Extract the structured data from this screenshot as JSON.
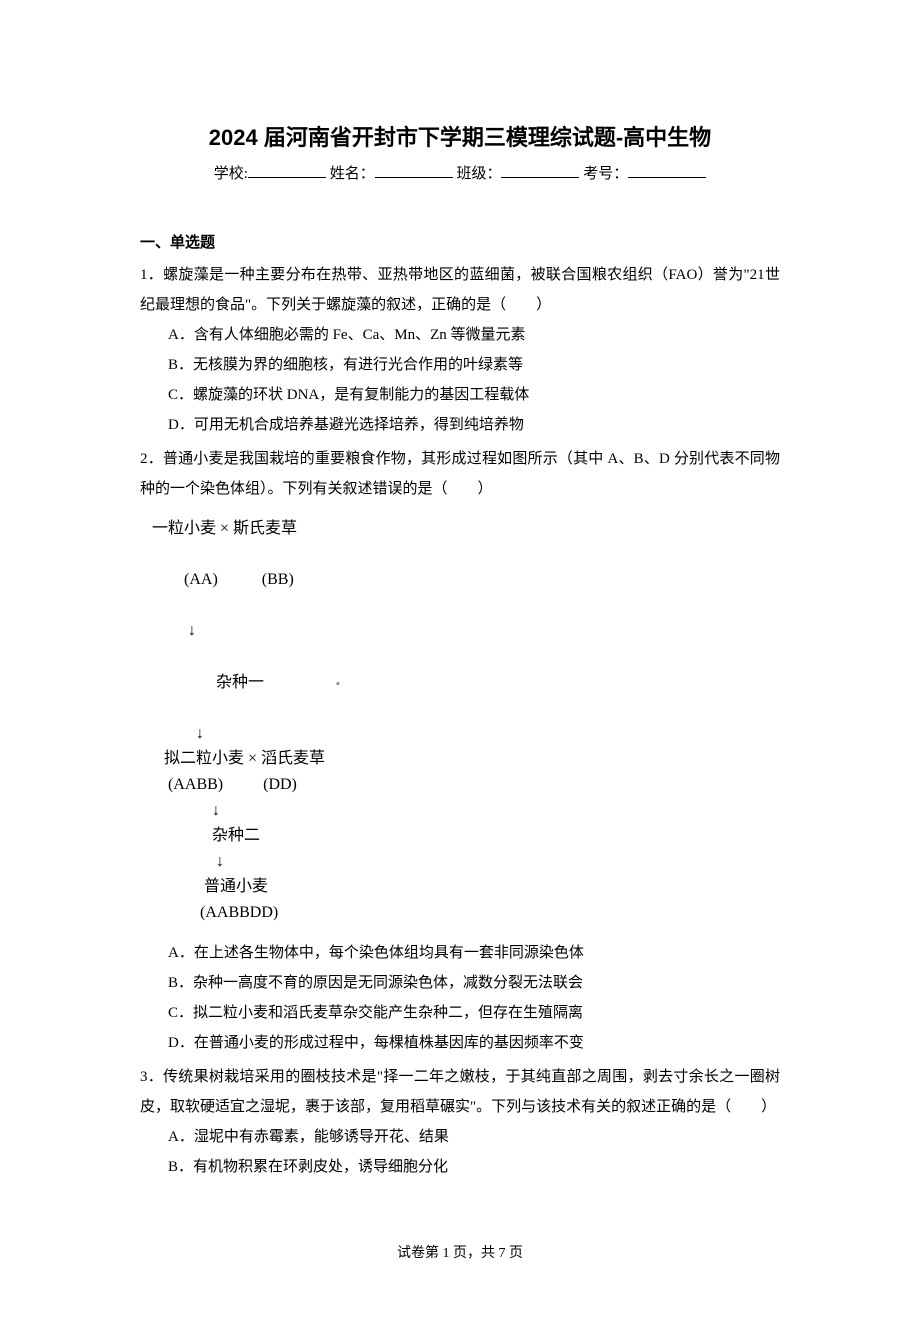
{
  "title": "2024 届河南省开封市下学期三模理综试题-高中生物",
  "meta": {
    "school_label": "学校:",
    "name_label": "姓名：",
    "class_label": "班级：",
    "examno_label": "考号："
  },
  "section1": {
    "heading": "一、单选题"
  },
  "q1": {
    "stem": "1．螺旋藻是一种主要分布在热带、亚热带地区的蓝细菌，被联合国粮农组织（FAO）誉为\"21世纪最理想的食品\"。下列关于螺旋藻的叙述，正确的是（　　）",
    "A": "A．含有人体细胞必需的 Fe、Ca、Mn、Zn 等微量元素",
    "B": "B．无核膜为界的细胞核，有进行光合作用的叶绿素等",
    "C": "C．螺旋藻的环状 DNA，是有复制能力的基因工程载体",
    "D": "D．可用无机合成培养基避光选择培养，得到纯培养物"
  },
  "q2": {
    "stem": "2．普通小麦是我国栽培的重要粮食作物，其形成过程如图所示（其中 A、B、D 分别代表不同物种的一个染色体组）。下列有关叙述错误的是（　　）",
    "figure": {
      "l1a": "一粒小麦 × 斯氏麦草",
      "l1b": "  (AA)           (BB)",
      "l2": "          杂种一",
      "l3a": "   拟二粒小麦 × 滔氏麦草",
      "l3b": "    (AABB)          (DD)",
      "l4": "               杂种二",
      "l5a": "             普通小麦",
      "l5b": "            (AABBDD)"
    },
    "A": "A．在上述各生物体中，每个染色体组均具有一套非同源染色体",
    "B": "B．杂种一高度不育的原因是无同源染色体，减数分裂无法联会",
    "C": "C．拟二粒小麦和滔氏麦草杂交能产生杂种二，但存在生殖隔离",
    "D": "D．在普通小麦的形成过程中，每棵植株基因库的基因频率不变"
  },
  "q3": {
    "stem": "3．传统果树栽培采用的圈枝技术是\"择一二年之嫩枝，于其纯直部之周围，剥去寸余长之一圈树皮，取软硬适宜之湿坭，裹于该部，复用稻草碾实\"。下列与该技术有关的叙述正确的是（　　）",
    "A": "A．湿坭中有赤霉素，能够诱导开花、结果",
    "B": "B．有机物积累在环剥皮处，诱导细胞分化"
  },
  "footer": {
    "text": "试卷第 1 页，共 7 页"
  },
  "style": {
    "title_fontsize": 22,
    "body_fontsize": 15,
    "line_height": 2.0,
    "text_color": "#000000",
    "background_color": "#ffffff"
  }
}
